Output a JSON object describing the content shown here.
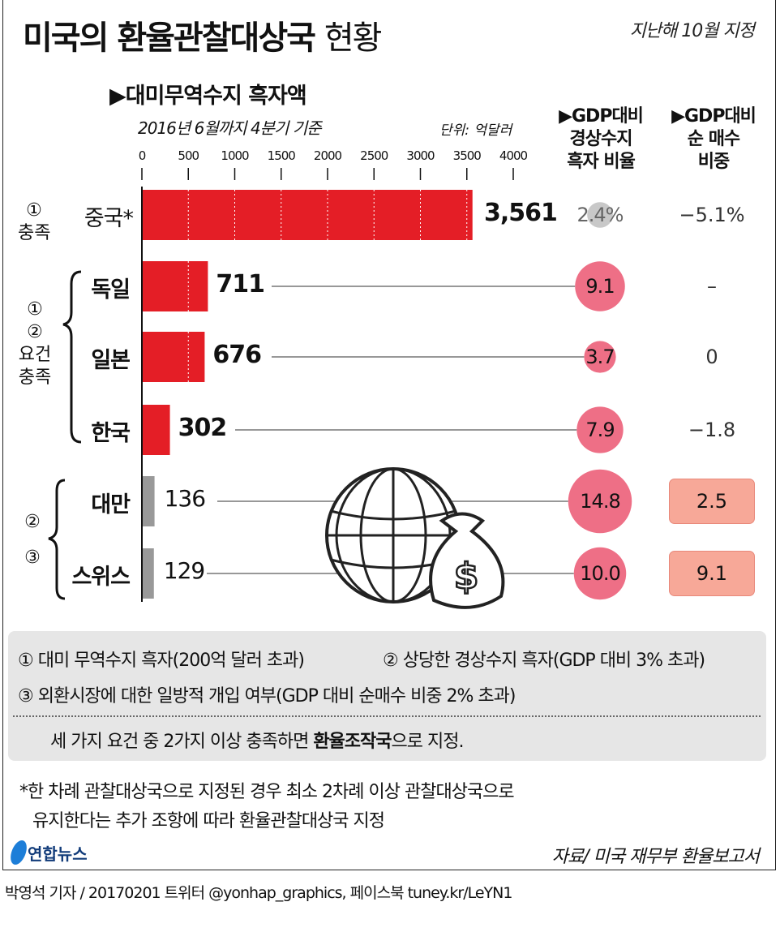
{
  "header": {
    "title_bold": "미국의 환율관찰대상국",
    "title_light": "현황",
    "designated": "지난해 10월 지정"
  },
  "chart_data": {
    "type": "bar",
    "title": "▶대미무역수지 흑자액",
    "subtitle": "2016년 6월까지 4분기 기준",
    "unit": "단위: 억달러",
    "xlim": [
      0,
      4000
    ],
    "ticks": [
      "0",
      "500",
      "1000",
      "1500",
      "2000",
      "2500",
      "3000",
      "3500",
      "4000"
    ],
    "categories": [
      "중국*",
      "독일",
      "일본",
      "한국",
      "대만",
      "스위스"
    ],
    "values": [
      3561,
      711,
      676,
      302,
      136,
      129
    ],
    "value_labels": [
      "3,561",
      "711",
      "676",
      "302",
      "136",
      "129"
    ],
    "bar_colors": [
      "#e41e26",
      "#e41e26",
      "#e41e26",
      "#e41e26",
      "#999999",
      "#999999"
    ],
    "gdp_current_account_header": [
      "▶GDP대비",
      "경상수지",
      "흑자 비율"
    ],
    "gdp_current_account": [
      2.4,
      9.1,
      3.7,
      7.9,
      14.8,
      10.0
    ],
    "gdp_current_account_labels": [
      "2.4%",
      "9.1",
      "3.7",
      "7.9",
      "14.8",
      "10.0"
    ],
    "net_purchase_header": [
      "▶GDP대비",
      "순 매수",
      "비중"
    ],
    "net_purchase_labels": [
      "−5.1%",
      "–",
      "0",
      "−1.8",
      "2.5",
      "9.1"
    ],
    "net_purchase_boxed": [
      false,
      false,
      false,
      false,
      true,
      true
    ],
    "circle_color": "#ee6f86",
    "circle_color_below_threshold": "#c8c8c8",
    "groups": [
      {
        "label": [
          "①",
          "충족"
        ]
      },
      {
        "label": [
          "①",
          "②",
          "요건",
          "충족"
        ]
      },
      {
        "label": [
          "②",
          "③"
        ]
      }
    ]
  },
  "legend": {
    "item1": "① 대미 무역수지 흑자(200억 달러 초과)",
    "item2": "② 상당한 경상수지 흑자(GDP 대비 3% 초과)",
    "item3": "③ 외환시장에 대한 일방적 개입 여부(GDP 대비 순매수 비중 2% 초과)",
    "rule_pre": "세 가지 요건 중 2가지 이상 충족하면 ",
    "rule_bold": "환율조작국",
    "rule_post": "으로 지정."
  },
  "footnote": {
    "line1": "*한 차례 관찰대상국으로 지정된 경우 최소 2차례 이상 관찰대상국으로",
    "line2": "유지한다는 추가 조항에 따라 환율관찰대상국 지정"
  },
  "footer": {
    "logo": "연합뉴스",
    "source": "자료/ 미국 재무부 환율보고서",
    "byline": "박영석 기자 / 20170201   트위터 @yonhap_graphics, 페이스북 tuney.kr/LeYN1"
  }
}
